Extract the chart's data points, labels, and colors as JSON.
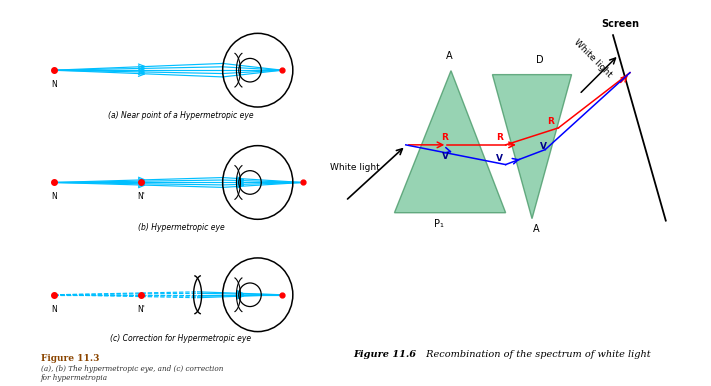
{
  "bg_color": "#ffffff",
  "fig_width": 7.11,
  "fig_height": 3.86,
  "cyan": "#00BFFF",
  "red_dot": "#FF0000",
  "left_panel": {
    "caption_a": "(a) Near point of a Hypermetropic eye",
    "caption_b": "(b) Hypermetropic eye",
    "caption_c": "(c) Correction for Hypermetropic eye",
    "figure_label": "Figure 11.3",
    "figure_desc_1": "(a), (b) The hypermetropic eye, and (c) correction",
    "figure_desc_2": "for hypermetropia"
  },
  "right_panel": {
    "caption_bold": "Figure 11.6",
    "caption_rest": " Recombination of the spectrum of white light",
    "prism_color": "#7dc8a0",
    "prism_edge": "#4a9a6a",
    "screen_label": "Screen",
    "white_light_in": "White light",
    "white_light_out": "White light"
  }
}
